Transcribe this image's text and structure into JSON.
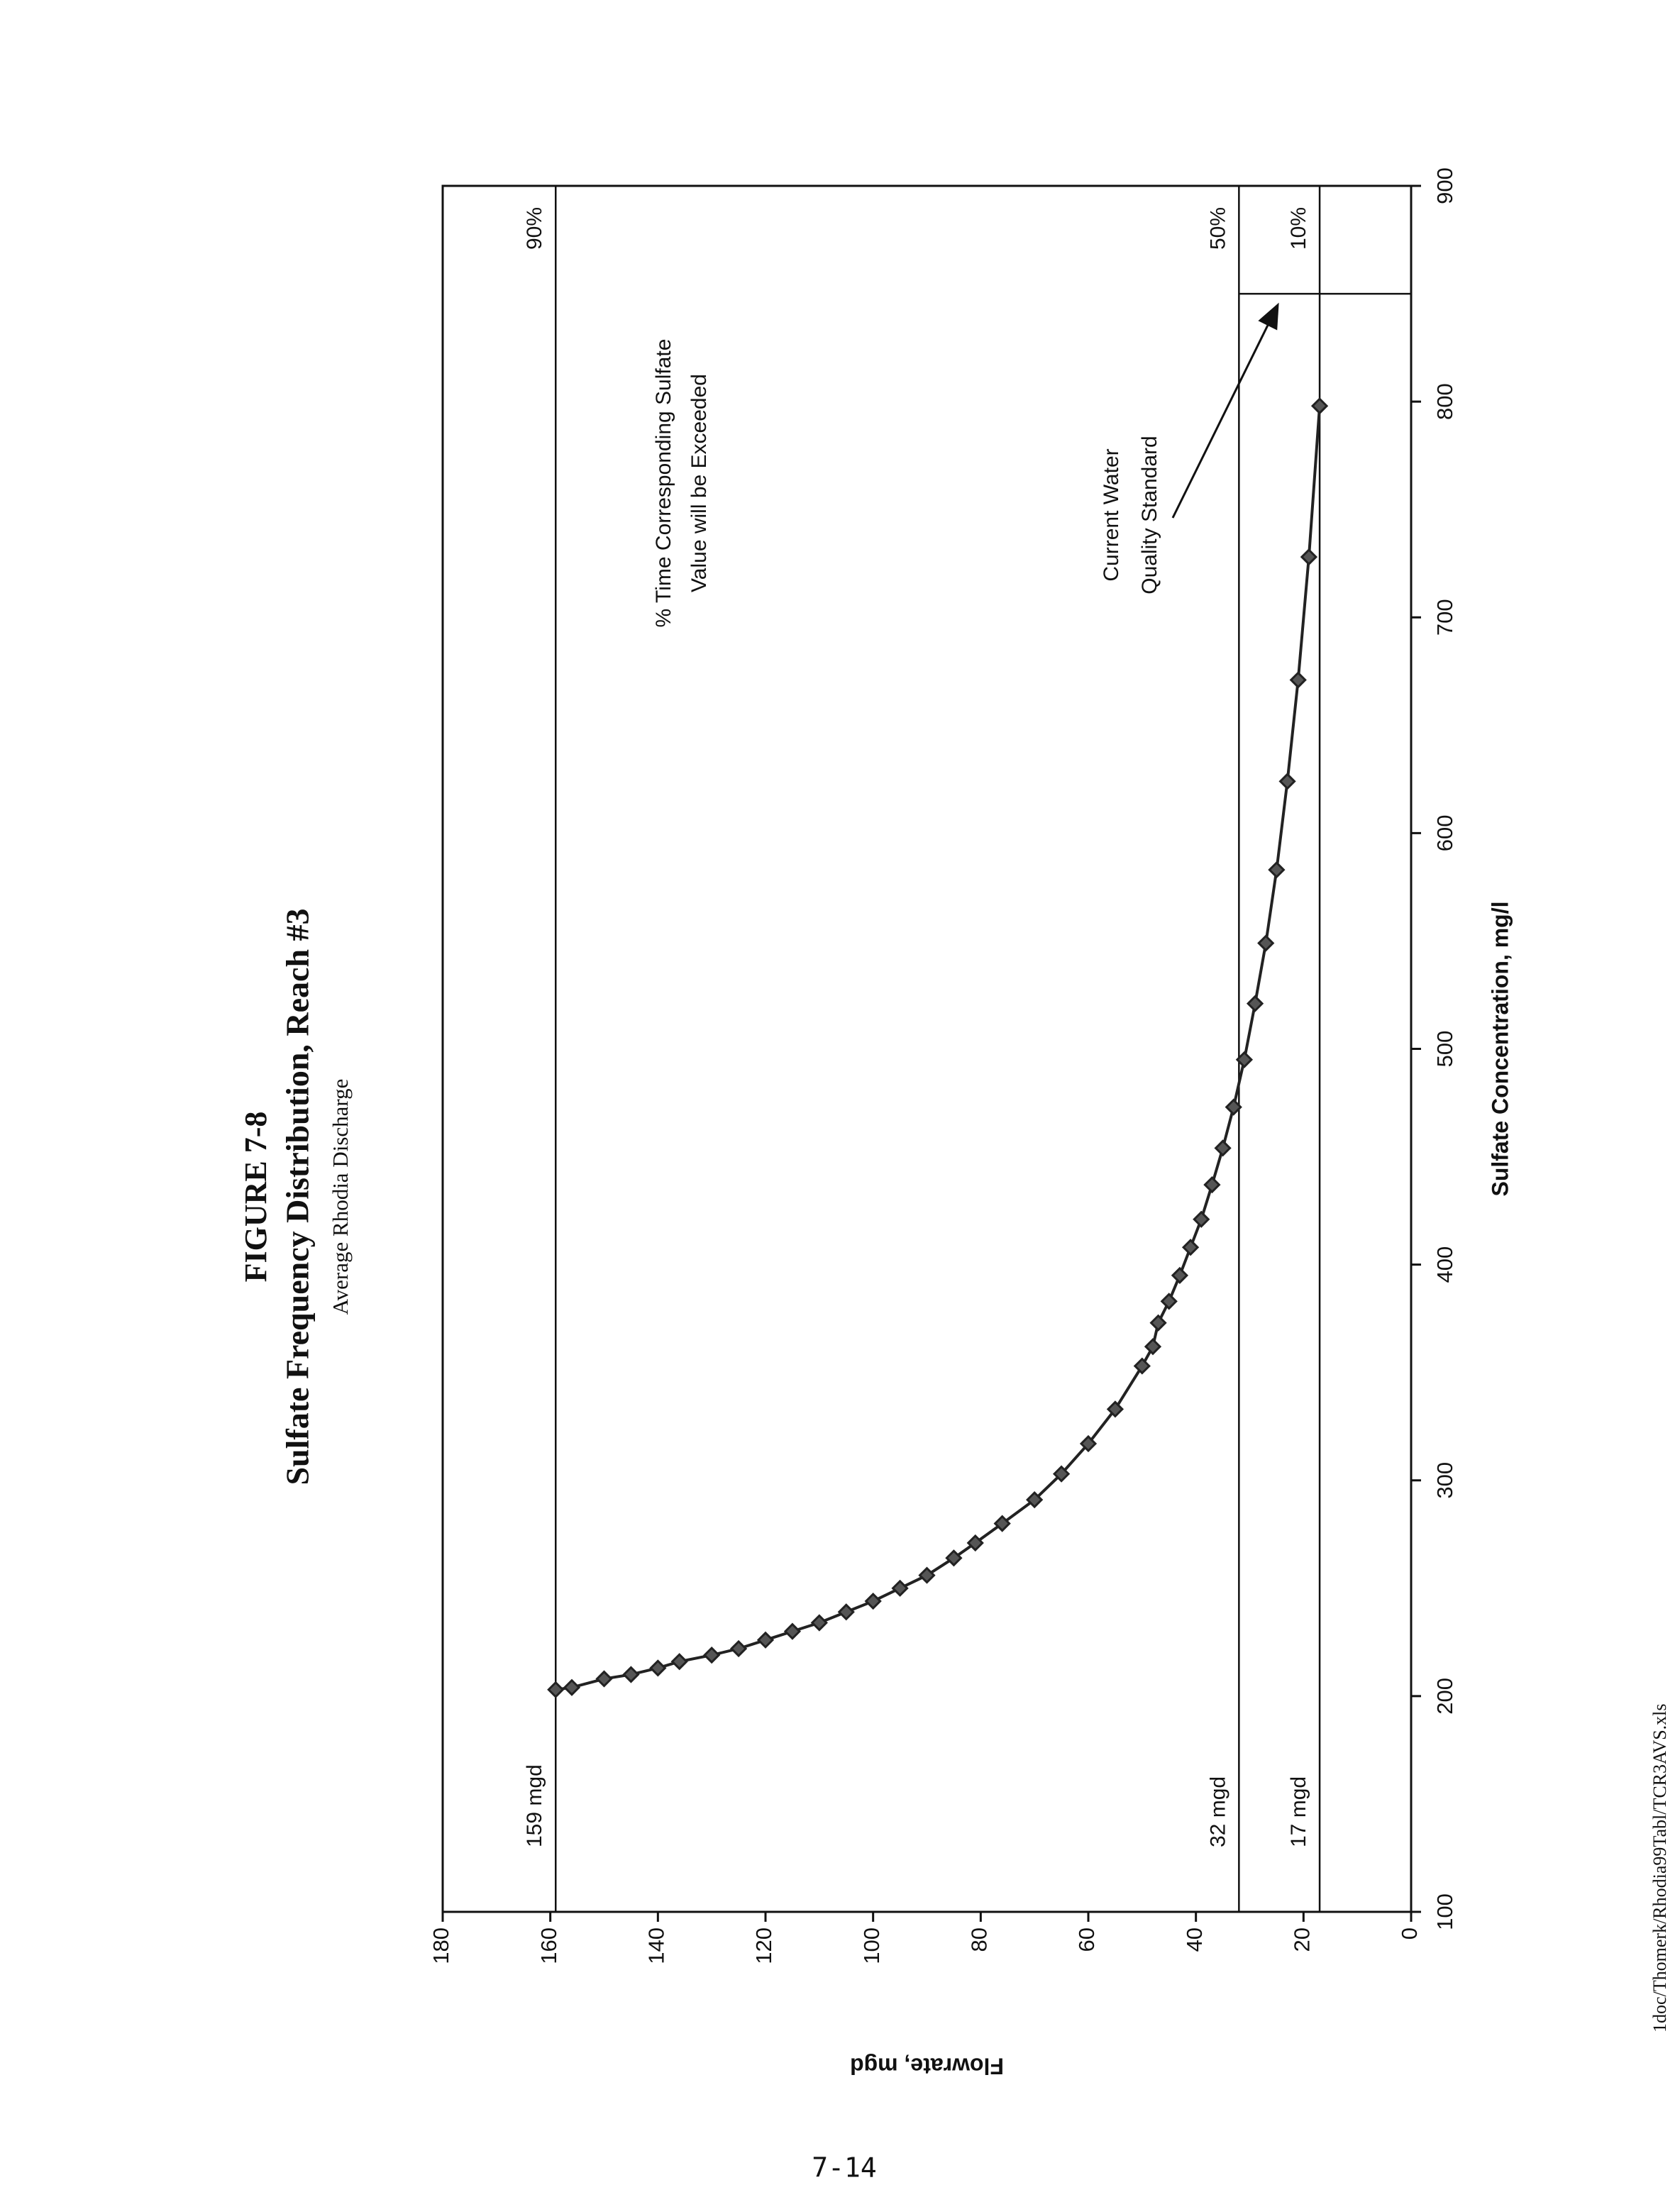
{
  "chart_data": {
    "type": "line",
    "figure_label": "FIGURE 7-8",
    "title": "Sulfate Frequency Distribution, Reach #3",
    "subtitle": "Average Rhodia Discharge",
    "x_label": "Sulfate Concentration, mg/l",
    "y_label": "Flowrate, mgd",
    "xlim": [
      100,
      900
    ],
    "xticks": [
      100,
      200,
      300,
      400,
      500,
      600,
      700,
      800,
      900
    ],
    "ylim": [
      0,
      180
    ],
    "yticks": [
      0,
      20,
      40,
      60,
      80,
      100,
      120,
      140,
      160,
      180
    ],
    "x": [
      203,
      204,
      208,
      210,
      213,
      216,
      219,
      222,
      226,
      230,
      234,
      239,
      244,
      250,
      256,
      264,
      271,
      280,
      291,
      303,
      317,
      333,
      353,
      362,
      373,
      383,
      395,
      408,
      421,
      437,
      454,
      473,
      495,
      521,
      549,
      583,
      624,
      671,
      728,
      798
    ],
    "series": [
      {
        "color": "#222222",
        "values": [
          159,
          156,
          150,
          145,
          140,
          136,
          130,
          125,
          120,
          115,
          110,
          105,
          100,
          95,
          90,
          85,
          81,
          76,
          70,
          65,
          60,
          55,
          50,
          48,
          47,
          45,
          43,
          41,
          39,
          37,
          35,
          33,
          31,
          29,
          27,
          25,
          23,
          21,
          19,
          17
        ]
      }
    ],
    "reference_lines": [
      {
        "value": 159,
        "label": "159 mgd",
        "percent": "90%"
      },
      {
        "value": 32,
        "label": "32 mgd",
        "percent": "50%"
      },
      {
        "value": 17,
        "label": "17 mgd",
        "percent": "10%"
      }
    ],
    "standard": {
      "value": 850,
      "label_lines": [
        "Current Water",
        "Quality Standard"
      ]
    },
    "annotation": [
      "% Time Corresponding Sulfate",
      "Value will be Exceeded"
    ]
  },
  "page": {
    "page_number": "7-14",
    "file_path": "1doc/Thomerk/Rhodia99Tabl/TCR3AVS.xls"
  }
}
